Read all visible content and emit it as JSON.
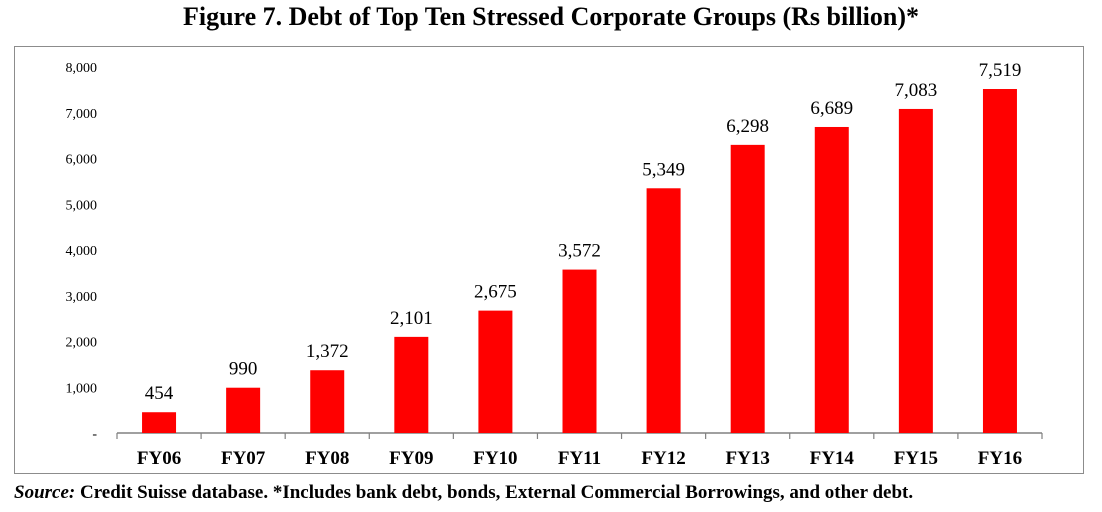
{
  "title": "Figure 7. Debt of Top Ten Stressed Corporate Groups (Rs billion)*",
  "source_label": "Source:",
  "source_text": " Credit Suisse database. *Includes bank debt, bonds, External Commercial Borrowings, and other debt.",
  "colors": {
    "bar": "#ff0000",
    "axis": "#808080"
  },
  "chart_data": {
    "type": "bar",
    "categories": [
      "FY06",
      "FY07",
      "FY08",
      "FY09",
      "FY10",
      "FY11",
      "FY12",
      "FY13",
      "FY14",
      "FY15",
      "FY16"
    ],
    "values": [
      454,
      990,
      1372,
      2101,
      2675,
      3572,
      5349,
      6298,
      6689,
      7083,
      7519
    ],
    "value_labels": [
      "454",
      "990",
      "1,372",
      "2,101",
      "2,675",
      "3,572",
      "5,349",
      "6,298",
      "6,689",
      "7,083",
      "7,519"
    ],
    "y_ticks": [
      0,
      1000,
      2000,
      3000,
      4000,
      5000,
      6000,
      7000,
      8000
    ],
    "y_tick_labels": [
      "-",
      "1,000",
      "2,000",
      "3,000",
      "4,000",
      "5,000",
      "6,000",
      "7,000",
      "8,000"
    ],
    "ylim": [
      0,
      8000
    ],
    "grid": false,
    "legend": "none"
  }
}
